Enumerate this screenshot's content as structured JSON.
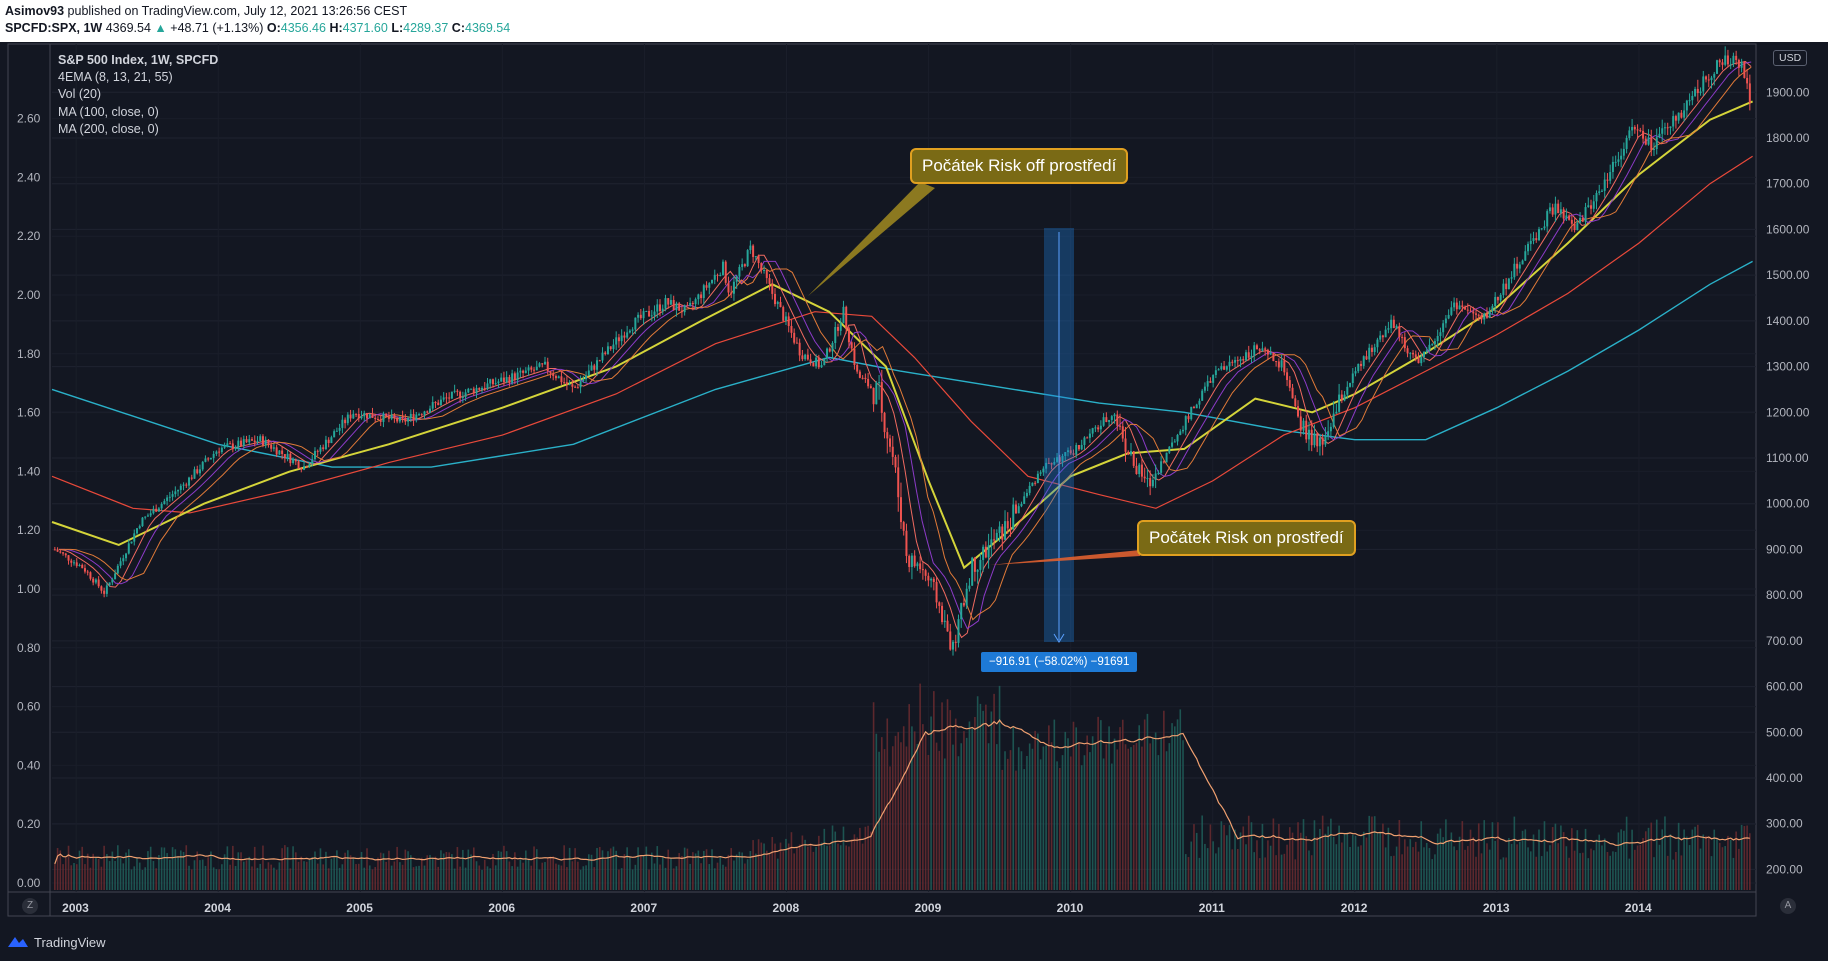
{
  "header": {
    "publisher": "Asimov93",
    "published_text": "published on TradingView.com, July 12, 2021 13:26:56 CEST",
    "symbol": "SPCFD:SPX, 1W",
    "last": "4369.54",
    "change_arrow": "▲",
    "change": "+48.71 (+1.13%)",
    "open_label": "O:",
    "open": "4356.46",
    "high_label": "H:",
    "high": "4371.60",
    "low_label": "L:",
    "low": "4289.37",
    "close_label": "C:",
    "close": "4369.54"
  },
  "legend": {
    "title": "S&P 500 Index, 1W, SPCFD",
    "items": [
      "4EMA (8, 13, 21, 55)",
      "Vol (20)",
      "MA (100, close, 0)",
      "MA (200, close, 0)"
    ]
  },
  "annotations": {
    "risk_off": "Počátek Risk off prostředí",
    "risk_on": "Počátek Risk on prostředí",
    "measure": "−916.91 (−58.02%) −91691"
  },
  "axis_buttons": {
    "left": "Z",
    "right": "A"
  },
  "currency": "USD",
  "footer": {
    "brand": "TradingView"
  },
  "colors": {
    "background": "#131722",
    "up_candle": "#26a69a",
    "down_candle": "#ef5350",
    "ema8": "#f06a60",
    "ema13": "#8c3bc8",
    "ema21": "#e07a38",
    "ema55": "#d4d43a",
    "ma100": "#e8493a",
    "ma200": "#2ab0c8",
    "vol_ma": "#f0a070",
    "callout_bg": "#7a6a15",
    "callout_border": "#e0a020",
    "measure": "#1e7ad6"
  },
  "chart_data": {
    "type": "line",
    "subtype": "candlestick with volume",
    "title": "S&P 500 Index, 1W, SPCFD",
    "x_ticks": [
      "2003",
      "2004",
      "2005",
      "2006",
      "2007",
      "2008",
      "2009",
      "2010",
      "2011",
      "2012",
      "2013",
      "2014"
    ],
    "y_right_ticks": [
      "1900.00",
      "1800.00",
      "1700.00",
      "1600.00",
      "1500.00",
      "1400.00",
      "1300.00",
      "1200.00",
      "1100.00",
      "1000.00",
      "900.00",
      "800.00",
      "700.00",
      "600.00",
      "500.00",
      "400.00",
      "300.00",
      "200.00"
    ],
    "y_left_ticks": [
      "2.60",
      "2.40",
      "2.20",
      "2.00",
      "1.80",
      "1.60",
      "1.40",
      "1.20",
      "1.00",
      "0.80",
      "0.60",
      "0.40",
      "0.20",
      "0.00"
    ],
    "y_right_range": [
      155,
      2010
    ],
    "x_range": [
      2002.83,
      2014.81
    ],
    "price_path": [
      [
        2002.85,
        900
      ],
      [
        2003.05,
        860
      ],
      [
        2003.2,
        805
      ],
      [
        2003.45,
        960
      ],
      [
        2003.75,
        1040
      ],
      [
        2004.0,
        1120
      ],
      [
        2004.3,
        1140
      ],
      [
        2004.6,
        1080
      ],
      [
        2004.95,
        1200
      ],
      [
        2005.3,
        1180
      ],
      [
        2005.6,
        1230
      ],
      [
        2005.9,
        1260
      ],
      [
        2006.3,
        1300
      ],
      [
        2006.5,
        1250
      ],
      [
        2006.9,
        1390
      ],
      [
        2007.15,
        1440
      ],
      [
        2007.3,
        1420
      ],
      [
        2007.55,
        1520
      ],
      [
        2007.6,
        1460
      ],
      [
        2007.75,
        1560
      ],
      [
        2007.9,
        1460
      ],
      [
        2008.1,
        1330
      ],
      [
        2008.25,
        1300
      ],
      [
        2008.4,
        1420
      ],
      [
        2008.5,
        1280
      ],
      [
        2008.65,
        1240
      ],
      [
        2008.75,
        1100
      ],
      [
        2008.85,
        880
      ],
      [
        2008.95,
        860
      ],
      [
        2009.05,
        800
      ],
      [
        2009.17,
        680
      ],
      [
        2009.3,
        860
      ],
      [
        2009.55,
        950
      ],
      [
        2009.8,
        1080
      ],
      [
        2010.0,
        1110
      ],
      [
        2010.3,
        1200
      ],
      [
        2010.45,
        1080
      ],
      [
        2010.55,
        1040
      ],
      [
        2010.75,
        1150
      ],
      [
        2011.0,
        1280
      ],
      [
        2011.3,
        1340
      ],
      [
        2011.5,
        1300
      ],
      [
        2011.6,
        1180
      ],
      [
        2011.75,
        1120
      ],
      [
        2011.95,
        1260
      ],
      [
        2012.25,
        1400
      ],
      [
        2012.45,
        1300
      ],
      [
        2012.7,
        1440
      ],
      [
        2012.9,
        1400
      ],
      [
        2013.1,
        1500
      ],
      [
        2013.4,
        1650
      ],
      [
        2013.55,
        1600
      ],
      [
        2013.75,
        1700
      ],
      [
        2013.95,
        1820
      ],
      [
        2014.1,
        1780
      ],
      [
        2014.35,
        1880
      ],
      [
        2014.55,
        1960
      ],
      [
        2014.72,
        1970
      ],
      [
        2014.79,
        1880
      ],
      [
        2014.81,
        1950
      ]
    ],
    "series": [
      {
        "name": "MA (200, close, 0)",
        "points": [
          [
            2002.83,
            1250
          ],
          [
            2004.0,
            1130
          ],
          [
            2004.8,
            1080
          ],
          [
            2005.5,
            1080
          ],
          [
            2006.5,
            1130
          ],
          [
            2007.5,
            1250
          ],
          [
            2008.3,
            1320
          ],
          [
            2008.8,
            1290
          ],
          [
            2009.6,
            1250
          ],
          [
            2010.2,
            1220
          ],
          [
            2010.8,
            1200
          ],
          [
            2011.5,
            1160
          ],
          [
            2012.0,
            1140
          ],
          [
            2012.5,
            1140
          ],
          [
            2013.0,
            1210
          ],
          [
            2013.5,
            1290
          ],
          [
            2014.0,
            1380
          ],
          [
            2014.5,
            1480
          ],
          [
            2014.8,
            1530
          ]
        ]
      },
      {
        "name": "MA (100, close, 0)",
        "points": [
          [
            2002.83,
            1060
          ],
          [
            2003.4,
            990
          ],
          [
            2003.8,
            980
          ],
          [
            2004.5,
            1030
          ],
          [
            2005.2,
            1090
          ],
          [
            2006.0,
            1150
          ],
          [
            2006.8,
            1240
          ],
          [
            2007.5,
            1350
          ],
          [
            2008.2,
            1420
          ],
          [
            2008.6,
            1410
          ],
          [
            2008.9,
            1320
          ],
          [
            2009.3,
            1180
          ],
          [
            2009.7,
            1060
          ],
          [
            2010.2,
            1020
          ],
          [
            2010.6,
            990
          ],
          [
            2011.0,
            1050
          ],
          [
            2011.5,
            1150
          ],
          [
            2012.0,
            1210
          ],
          [
            2012.5,
            1290
          ],
          [
            2013.0,
            1370
          ],
          [
            2013.5,
            1460
          ],
          [
            2014.0,
            1570
          ],
          [
            2014.5,
            1700
          ],
          [
            2014.8,
            1760
          ]
        ]
      },
      {
        "name": "EMA 55",
        "points": [
          [
            2002.83,
            960
          ],
          [
            2003.3,
            910
          ],
          [
            2003.9,
            1000
          ],
          [
            2004.5,
            1070
          ],
          [
            2005.2,
            1130
          ],
          [
            2006.0,
            1210
          ],
          [
            2006.8,
            1300
          ],
          [
            2007.4,
            1400
          ],
          [
            2007.9,
            1480
          ],
          [
            2008.3,
            1420
          ],
          [
            2008.7,
            1300
          ],
          [
            2009.0,
            1050
          ],
          [
            2009.25,
            860
          ],
          [
            2009.6,
            950
          ],
          [
            2010.0,
            1060
          ],
          [
            2010.4,
            1110
          ],
          [
            2010.8,
            1120
          ],
          [
            2011.3,
            1230
          ],
          [
            2011.7,
            1200
          ],
          [
            2012.0,
            1240
          ],
          [
            2012.5,
            1330
          ],
          [
            2013.0,
            1430
          ],
          [
            2013.5,
            1570
          ],
          [
            2014.0,
            1720
          ],
          [
            2014.5,
            1840
          ],
          [
            2014.8,
            1880
          ]
        ]
      }
    ]
  }
}
